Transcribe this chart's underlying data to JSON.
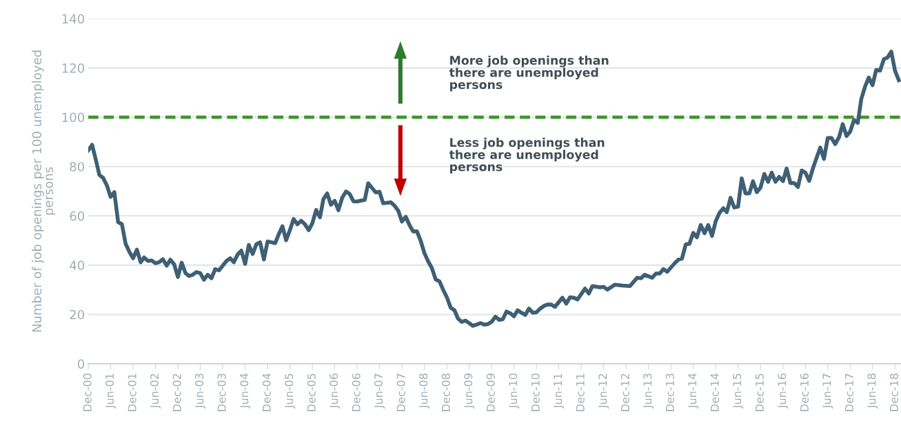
{
  "chart_data": {
    "type": "line",
    "ylabel": "Number of job openings per 100 unemployed\npersons",
    "ylim": [
      0,
      140
    ],
    "yticks": [
      0,
      20,
      40,
      60,
      80,
      100,
      120,
      140
    ],
    "xlim": [
      "2000-12",
      "2019-01-19"
    ],
    "xticks": [
      {
        "value": "2000-12",
        "label": "Dec-00"
      },
      {
        "value": "2001-06",
        "label": "Jun-01"
      },
      {
        "value": "2001-12",
        "label": "Dec-01"
      },
      {
        "value": "2002-06",
        "label": "Jun-02"
      },
      {
        "value": "2002-12",
        "label": "Dec-02"
      },
      {
        "value": "2003-06",
        "label": "Jun-03"
      },
      {
        "value": "2003-12",
        "label": "Dec-03"
      },
      {
        "value": "2004-06",
        "label": "Jun-04"
      },
      {
        "value": "2004-12",
        "label": "Dec-04"
      },
      {
        "value": "2005-06",
        "label": "Jun-05"
      },
      {
        "value": "2005-12",
        "label": "Dec-05"
      },
      {
        "value": "2006-06",
        "label": "Jun-06"
      },
      {
        "value": "2006-12",
        "label": "Dec-06"
      },
      {
        "value": "2007-06",
        "label": "Jun-07"
      },
      {
        "value": "2007-12",
        "label": "Dec-07"
      },
      {
        "value": "2008-06",
        "label": "Jun-08"
      },
      {
        "value": "2008-12",
        "label": "Dec-08"
      },
      {
        "value": "2009-06",
        "label": "Jun-09"
      },
      {
        "value": "2009-12",
        "label": "Dec-09"
      },
      {
        "value": "2010-06",
        "label": "Jun-10"
      },
      {
        "value": "2010-12",
        "label": "Dec-10"
      },
      {
        "value": "2011-06",
        "label": "Jun-11"
      },
      {
        "value": "2011-12",
        "label": "Dec-11"
      },
      {
        "value": "2012-06",
        "label": "Jun-12"
      },
      {
        "value": "2012-12",
        "label": "Dec-12"
      },
      {
        "value": "2013-06",
        "label": "Jun-13"
      },
      {
        "value": "2013-12",
        "label": "Dec-13"
      },
      {
        "value": "2014-06",
        "label": "Jun-14"
      },
      {
        "value": "2014-12",
        "label": "Dec-14"
      },
      {
        "value": "2015-06",
        "label": "Jun-15"
      },
      {
        "value": "2015-12",
        "label": "Dec-15"
      },
      {
        "value": "2016-06",
        "label": "Jun-16"
      },
      {
        "value": "2016-12",
        "label": "Dec-16"
      },
      {
        "value": "2017-06",
        "label": "Jun-17"
      },
      {
        "value": "2017-12",
        "label": "Dec-17"
      },
      {
        "value": "2018-06",
        "label": "Jun-18"
      },
      {
        "value": "2018-12",
        "label": "Dec-18"
      }
    ],
    "grid": "y",
    "ref_lines": [
      {
        "axis": "y",
        "value": 100,
        "color": "#3f962e",
        "line_style": "dashed"
      }
    ],
    "annotations": [
      "More job openings than\nthere are unemployed\npersons",
      "Less job openings than\nthere are unemployed\npersons"
    ],
    "series": [
      {
        "color": "#3f5f75",
        "x": [
          "2000-12",
          "2001-01",
          "2001-02",
          "2001-03",
          "2001-04",
          "2001-05",
          "2001-06",
          "2001-07",
          "2001-08",
          "2001-09",
          "2001-10",
          "2001-11",
          "2001-12",
          "2002-01",
          "2002-02",
          "2002-03",
          "2002-04",
          "2002-05",
          "2002-06",
          "2002-07",
          "2002-08",
          "2002-09",
          "2002-10",
          "2002-11",
          "2002-12",
          "2003-01",
          "2003-02",
          "2003-03",
          "2003-04",
          "2003-05",
          "2003-06",
          "2003-07",
          "2003-08",
          "2003-09",
          "2003-10",
          "2003-11",
          "2004-01",
          "2004-02",
          "2004-03",
          "2004-04",
          "2004-05",
          "2004-06",
          "2004-07",
          "2004-08",
          "2004-09",
          "2004-10",
          "2004-11",
          "2004-12",
          "2005-01",
          "2005-02",
          "2005-03",
          "2005-04",
          "2005-05",
          "2005-06",
          "2005-07",
          "2005-08",
          "2005-09",
          "2005-10",
          "2005-11",
          "2005-12",
          "2006-01",
          "2006-02",
          "2006-03",
          "2006-04",
          "2006-05",
          "2006-06",
          "2006-07",
          "2006-08",
          "2006-09",
          "2006-10",
          "2006-11",
          "2006-12",
          "2007-02",
          "2007-03",
          "2007-05",
          "2007-06",
          "2007-07",
          "2007-09",
          "2007-10",
          "2007-11",
          "2007-12",
          "2008-01",
          "2008-02",
          "2008-03",
          "2008-04",
          "2008-05",
          "2008-06",
          "2008-07",
          "2008-08",
          "2008-09",
          "2008-10",
          "2008-11",
          "2008-12",
          "2009-01",
          "2009-02",
          "2009-03",
          "2009-04",
          "2009-05",
          "2009-06",
          "2009-07",
          "2009-08",
          "2009-09",
          "2009-10",
          "2009-11",
          "2009-12",
          "2010-01",
          "2010-02",
          "2010-03",
          "2010-04",
          "2010-05",
          "2010-06",
          "2010-07",
          "2010-08",
          "2010-09",
          "2010-10",
          "2010-11",
          "2010-12",
          "2011-01",
          "2011-02",
          "2011-03",
          "2011-04",
          "2011-05",
          "2011-07",
          "2011-08",
          "2011-09",
          "2011-10",
          "2011-11",
          "2012-01",
          "2012-02",
          "2012-03",
          "2012-05",
          "2012-06",
          "2012-07",
          "2012-09",
          "2012-11",
          "2013-01",
          "2013-03",
          "2013-04",
          "2013-05",
          "2013-07",
          "2013-08",
          "2013-09",
          "2013-10",
          "2013-11",
          "2014-01",
          "2014-02",
          "2014-03",
          "2014-04",
          "2014-05",
          "2014-06",
          "2014-07",
          "2014-08",
          "2014-09",
          "2014-10",
          "2014-11",
          "2014-12",
          "2015-01",
          "2015-02",
          "2015-03",
          "2015-04",
          "2015-05",
          "2015-06",
          "2015-07",
          "2015-08",
          "2015-09",
          "2015-10",
          "2015-11",
          "2015-12",
          "2016-01",
          "2016-02",
          "2016-03",
          "2016-04",
          "2016-05",
          "2016-06",
          "2016-07",
          "2016-08",
          "2016-09",
          "2016-10",
          "2016-11",
          "2016-12",
          "2017-01",
          "2017-02",
          "2017-04",
          "2017-05",
          "2017-06",
          "2017-07",
          "2017-08",
          "2017-09",
          "2017-10",
          "2017-11",
          "2017-12",
          "2018-01",
          "2018-02",
          "2018-03",
          "2018-04",
          "2018-05",
          "2018-06",
          "2018-07",
          "2018-08",
          "2018-09",
          "2018-10",
          "2018-11",
          "2018-12",
          "2019-01"
        ],
        "values": [
          86.6,
          88.8,
          82.6,
          76.6,
          75.4,
          72.4,
          67.7,
          69.6,
          57.5,
          56.6,
          48.7,
          45.4,
          42.8,
          46.3,
          41.2,
          43.1,
          41.7,
          41.9,
          40.8,
          41.2,
          42.4,
          39.8,
          42.2,
          40.3,
          35.2,
          41.0,
          36.8,
          35.6,
          36.1,
          37.2,
          36.8,
          34.1,
          36.1,
          34.7,
          38.4,
          37.9,
          41.7,
          42.8,
          41.2,
          44.3,
          45.9,
          40.5,
          48.2,
          44.5,
          48.5,
          49.3,
          42.3,
          49.6,
          49.3,
          48.9,
          52.4,
          55.8,
          50.1,
          54.2,
          58.7,
          56.6,
          58.0,
          56.6,
          54.2,
          57.0,
          62.4,
          59.4,
          66.8,
          69.1,
          64.5,
          66.1,
          62.3,
          67.3,
          69.9,
          68.9,
          65.9,
          65.8,
          66.5,
          73.2,
          69.5,
          69.8,
          65.1,
          65.5,
          64.2,
          62.1,
          57.7,
          59.6,
          56.2,
          53.7,
          53.7,
          50.0,
          44.9,
          41.6,
          38.8,
          34.2,
          33.5,
          30.0,
          27.0,
          22.8,
          21.7,
          18.4,
          17.0,
          17.5,
          16.5,
          15.4,
          15.9,
          16.5,
          15.9,
          16.1,
          17.0,
          19.1,
          17.8,
          18.0,
          21.2,
          20.5,
          19.3,
          21.7,
          20.7,
          19.8,
          22.4,
          20.7,
          20.9,
          22.4,
          23.5,
          24.0,
          24.0,
          23.1,
          26.8,
          24.4,
          27.0,
          26.8,
          26.1,
          30.5,
          28.5,
          31.5,
          31.0,
          31.2,
          30.1,
          32.1,
          31.7,
          31.5,
          34.9,
          34.7,
          36.1,
          34.9,
          36.6,
          36.6,
          38.4,
          37.3,
          40.8,
          42.3,
          42.6,
          48.4,
          48.7,
          53.1,
          51.3,
          56.3,
          52.9,
          56.3,
          51.9,
          57.8,
          61.2,
          63.1,
          61.5,
          67.3,
          63.4,
          63.7,
          75.2,
          69.1,
          69.1,
          74.0,
          69.6,
          71.5,
          77.0,
          73.8,
          77.5,
          73.8,
          75.8,
          74.1,
          79.2,
          73.3,
          73.3,
          71.7,
          78.4,
          77.5,
          74.2,
          79.4,
          87.7,
          83.1,
          91.6,
          91.6,
          89.1,
          91.9,
          97.2,
          92.4,
          94.2,
          98.9,
          97.7,
          107.3,
          112.4,
          116.1,
          113.0,
          119.2,
          118.9,
          123.5,
          124.2,
          126.6,
          118.9,
          115.0
        ]
      }
    ]
  }
}
